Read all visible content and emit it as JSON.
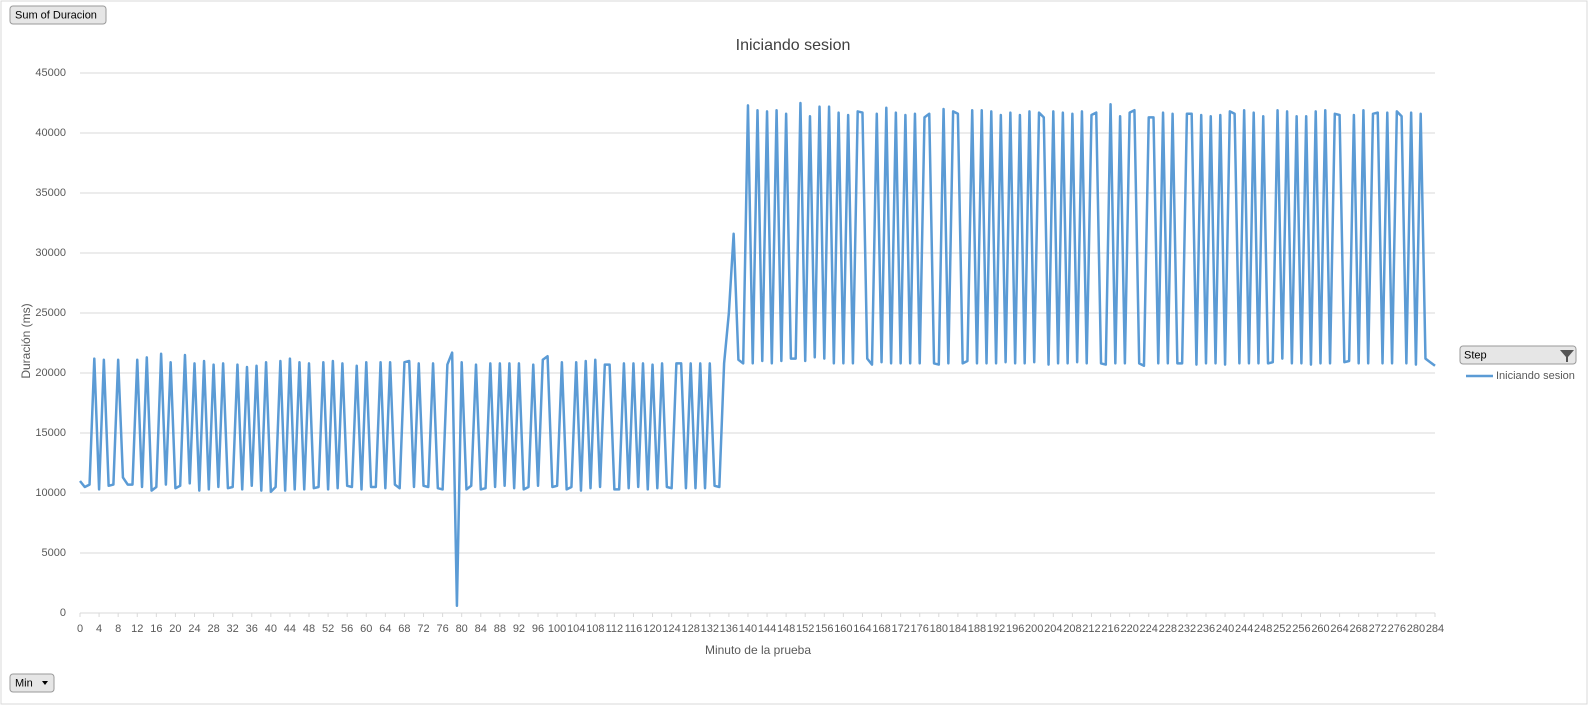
{
  "pivot_fields": {
    "value_field": "Sum of Duracion",
    "legend_field": "Step",
    "axis_field": "Min"
  },
  "chart_data": {
    "type": "line",
    "title": "Iniciando sesion",
    "x_label": "Minuto de la prueba",
    "y_label": "Duración (ms)",
    "x": [
      0,
      1,
      2,
      3,
      4,
      5,
      6,
      7,
      8,
      9,
      10,
      11,
      12,
      13,
      14,
      15,
      16,
      17,
      18,
      19,
      20,
      21,
      22,
      23,
      24,
      25,
      26,
      27,
      28,
      29,
      30,
      31,
      32,
      33,
      34,
      35,
      36,
      37,
      38,
      39,
      40,
      41,
      42,
      43,
      44,
      45,
      46,
      47,
      48,
      49,
      50,
      51,
      52,
      53,
      54,
      55,
      56,
      57,
      58,
      59,
      60,
      61,
      62,
      63,
      64,
      65,
      66,
      67,
      68,
      69,
      70,
      71,
      72,
      73,
      74,
      75,
      76,
      77,
      78,
      79,
      80,
      81,
      82,
      83,
      84,
      85,
      86,
      87,
      88,
      89,
      90,
      91,
      92,
      93,
      94,
      95,
      96,
      97,
      98,
      99,
      100,
      101,
      102,
      103,
      104,
      105,
      106,
      107,
      108,
      109,
      110,
      111,
      112,
      113,
      114,
      115,
      116,
      117,
      118,
      119,
      120,
      121,
      122,
      123,
      124,
      125,
      126,
      127,
      128,
      129,
      130,
      131,
      132,
      133,
      134,
      135,
      136,
      137,
      138,
      139,
      140,
      141,
      142,
      143,
      144,
      145,
      146,
      147,
      148,
      149,
      150,
      151,
      152,
      153,
      154,
      155,
      156,
      157,
      158,
      159,
      160,
      161,
      162,
      163,
      164,
      165,
      166,
      167,
      168,
      169,
      170,
      171,
      172,
      173,
      174,
      175,
      176,
      177,
      178,
      179,
      180,
      181,
      182,
      183,
      184,
      185,
      186,
      187,
      188,
      189,
      190,
      191,
      192,
      193,
      194,
      195,
      196,
      197,
      198,
      199,
      200,
      201,
      202,
      203,
      204,
      205,
      206,
      207,
      208,
      209,
      210,
      211,
      212,
      213,
      214,
      215,
      216,
      217,
      218,
      219,
      220,
      221,
      222,
      223,
      224,
      225,
      226,
      227,
      228,
      229,
      230,
      231,
      232,
      233,
      234,
      235,
      236,
      237,
      238,
      239,
      240,
      241,
      242,
      243,
      244,
      245,
      246,
      247,
      248,
      249,
      250,
      251,
      252,
      253,
      254,
      255,
      256,
      257,
      258,
      259,
      260,
      261,
      262,
      263,
      264,
      265,
      266,
      267,
      268,
      269,
      270,
      271,
      272,
      273,
      274,
      275,
      276,
      277,
      278,
      279,
      280,
      281,
      282,
      283,
      284
    ],
    "series": [
      {
        "name": "Iniciando sesion",
        "color": "#5b9bd5",
        "values": [
          11000,
          10500,
          10700,
          21200,
          10300,
          21100,
          10600,
          10700,
          21100,
          11300,
          10700,
          10700,
          21100,
          10500,
          21300,
          10200,
          10500,
          21600,
          10700,
          20900,
          10400,
          10600,
          21500,
          10800,
          20800,
          10200,
          21000,
          10300,
          20700,
          10500,
          20800,
          10400,
          10500,
          20700,
          10300,
          20500,
          10600,
          20600,
          10200,
          20900,
          10100,
          10500,
          21000,
          10200,
          21200,
          10300,
          20900,
          10300,
          20800,
          10400,
          10500,
          20900,
          10300,
          21000,
          10400,
          20800,
          10600,
          10500,
          20600,
          10300,
          20900,
          10500,
          10500,
          20900,
          10400,
          20900,
          10700,
          10400,
          20900,
          21000,
          10500,
          20800,
          10600,
          10500,
          20800,
          10400,
          10300,
          20700,
          21700,
          600,
          20900,
          10300,
          10600,
          20700,
          10300,
          10400,
          20800,
          10500,
          20800,
          10600,
          20800,
          10400,
          20800,
          10300,
          10500,
          20700,
          10600,
          21100,
          21400,
          10500,
          10600,
          20900,
          10300,
          10500,
          20900,
          10200,
          21000,
          10400,
          21100,
          10500,
          20700,
          20700,
          10300,
          10300,
          20800,
          10400,
          20800,
          10500,
          20800,
          10300,
          20700,
          10400,
          20800,
          10500,
          10400,
          20800,
          20800,
          10400,
          20800,
          10400,
          20800,
          10400,
          20800,
          10600,
          10500,
          20800,
          25000,
          31600,
          21100,
          20800,
          42300,
          20800,
          41900,
          21000,
          41800,
          20800,
          41900,
          21000,
          41600,
          21200,
          21200,
          42500,
          21000,
          41400,
          21300,
          42200,
          21200,
          42200,
          20800,
          41700,
          20800,
          41500,
          20800,
          41800,
          41700,
          21200,
          20700,
          41600,
          20900,
          42100,
          20800,
          41700,
          20800,
          41500,
          20800,
          41600,
          20800,
          41300,
          41600,
          20800,
          20700,
          42000,
          20800,
          41800,
          41600,
          20800,
          21000,
          41900,
          20800,
          41900,
          20800,
          41800,
          20800,
          41500,
          20900,
          41700,
          20800,
          41500,
          20800,
          41800,
          20900,
          41700,
          41300,
          20700,
          41800,
          20800,
          41700,
          20800,
          41600,
          20900,
          41800,
          20800,
          41500,
          41700,
          20800,
          20700,
          42400,
          20800,
          41400,
          20800,
          41700,
          41900,
          20800,
          20600,
          41300,
          41300,
          20800,
          41700,
          20800,
          41600,
          20800,
          20800,
          41600,
          41600,
          20700,
          41500,
          20800,
          41400,
          20800,
          41500,
          20700,
          41800,
          41600,
          20800,
          41900,
          20800,
          41700,
          20800,
          41400,
          20800,
          20900,
          41900,
          21200,
          41800,
          20800,
          41400,
          20800,
          41400,
          20700,
          41800,
          20800,
          41900,
          20800,
          41600,
          41500,
          20900,
          21000,
          41500,
          20800,
          41900,
          20800,
          41600,
          41700,
          20800,
          41700,
          20800,
          41800,
          41400,
          20800,
          41700,
          20700,
          41600,
          21200,
          20900,
          20600
        ]
      }
    ],
    "xlim": [
      0,
      284
    ],
    "xticks": [
      0,
      4,
      8,
      12,
      16,
      20,
      24,
      28,
      32,
      36,
      40,
      44,
      48,
      52,
      56,
      60,
      64,
      68,
      72,
      76,
      80,
      84,
      88,
      92,
      96,
      100,
      104,
      108,
      112,
      116,
      120,
      124,
      128,
      132,
      136,
      140,
      144,
      148,
      152,
      156,
      160,
      164,
      168,
      172,
      176,
      180,
      184,
      188,
      192,
      196,
      200,
      204,
      208,
      212,
      216,
      220,
      224,
      228,
      232,
      236,
      240,
      244,
      248,
      252,
      256,
      260,
      264,
      268,
      272,
      276,
      280,
      284
    ],
    "ylim": [
      0,
      45000
    ],
    "yticks": [
      0,
      5000,
      10000,
      15000,
      20000,
      25000,
      30000,
      35000,
      40000,
      45000
    ],
    "grid": true,
    "legend": "right"
  }
}
